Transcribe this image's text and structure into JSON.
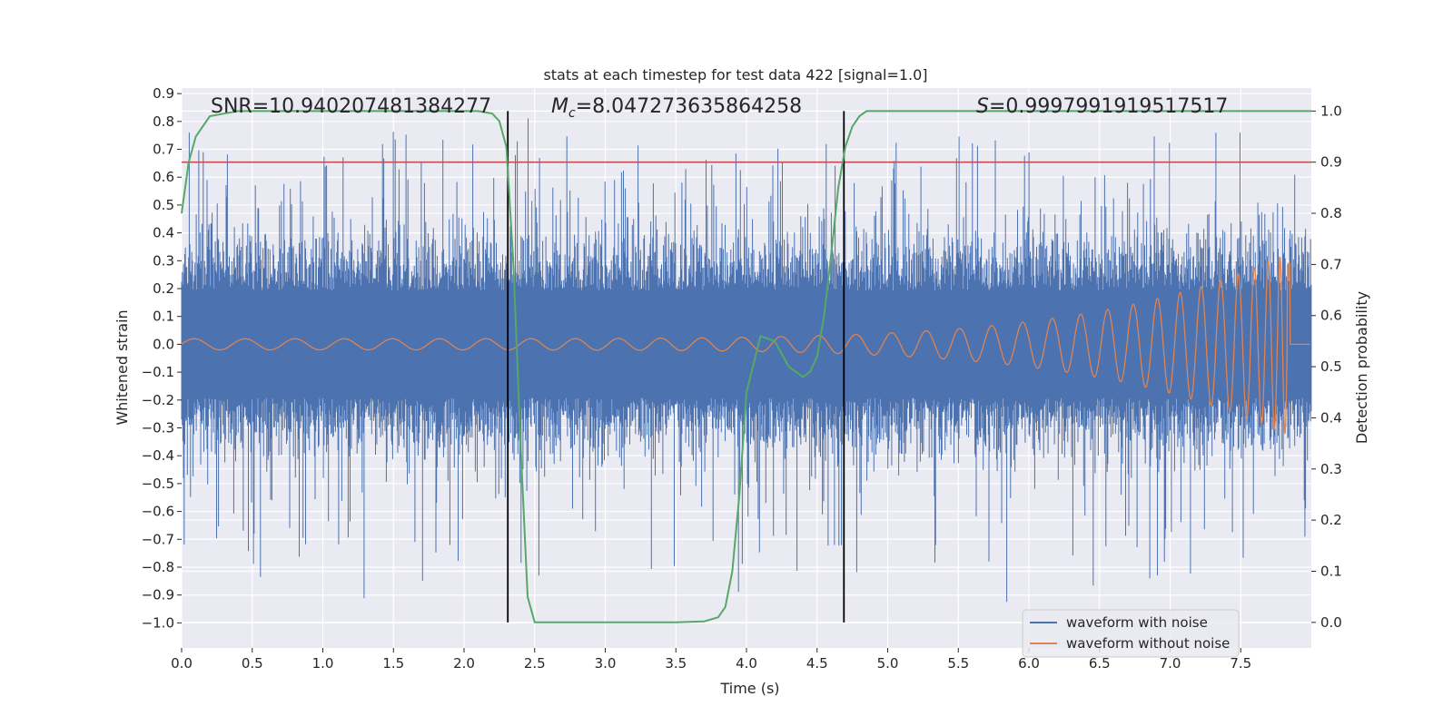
{
  "chart_data": {
    "type": "line",
    "title": "stats at each timestep for test data 422 [signal=1.0]",
    "xlabel": "Time (s)",
    "ylabel_left": "Whitened strain",
    "ylabel_right": "Detection probability",
    "xlim": [
      0.0,
      8.0
    ],
    "ylim_left": [
      -1.09,
      0.92
    ],
    "ylim_right": [
      -0.05,
      1.045
    ],
    "x_ticks": [
      "0.0",
      "0.5",
      "1.0",
      "1.5",
      "2.0",
      "2.5",
      "3.0",
      "3.5",
      "4.0",
      "4.5",
      "5.0",
      "5.5",
      "6.0",
      "6.5",
      "7.0",
      "7.5"
    ],
    "x_tick_values": [
      0,
      0.5,
      1,
      1.5,
      2,
      2.5,
      3,
      3.5,
      4,
      4.5,
      5,
      5.5,
      6,
      6.5,
      7,
      7.5
    ],
    "y_left_ticks": [
      "0.9",
      "0.8",
      "0.7",
      "0.6",
      "0.5",
      "0.4",
      "0.3",
      "0.2",
      "0.1",
      "0.0",
      "−0.1",
      "−0.2",
      "−0.3",
      "−0.4",
      "−0.5",
      "−0.6",
      "−0.7",
      "−0.8",
      "−0.9",
      "−1.0"
    ],
    "y_left_tick_values": [
      0.9,
      0.8,
      0.7,
      0.6,
      0.5,
      0.4,
      0.3,
      0.2,
      0.1,
      0.0,
      -0.1,
      -0.2,
      -0.3,
      -0.4,
      -0.5,
      -0.6,
      -0.7,
      -0.8,
      -0.9,
      -1.0
    ],
    "y_right_ticks": [
      "1.0",
      "0.9",
      "0.8",
      "0.7",
      "0.6",
      "0.5",
      "0.4",
      "0.3",
      "0.2",
      "0.1",
      "0.0"
    ],
    "y_right_tick_values": [
      1.0,
      0.9,
      0.8,
      0.7,
      0.6,
      0.5,
      0.4,
      0.3,
      0.2,
      0.1,
      0.0
    ],
    "annotations": {
      "snr": "SNR=10.940207481384277",
      "mc_symbol": "M",
      "mc_subscript": "c",
      "mc_value": "=8.047273635864258",
      "s_symbol": "S",
      "s_value": "=0.9997991919517517"
    },
    "threshold": 0.9,
    "vertical_markers_x": [
      2.31,
      4.69
    ],
    "noisy_envelope": {
      "typical_amplitude": 0.35,
      "max_peak": 0.83,
      "min_trough": -1.0
    },
    "chirp": {
      "start_amplitude": 0.02,
      "merger_time": 7.85,
      "merger_peak": 0.29,
      "merger_trough": -0.44
    },
    "detection_probability": {
      "x": [
        0.0,
        0.05,
        0.1,
        0.15,
        0.2,
        0.3,
        0.4,
        0.6,
        0.8,
        1.0,
        1.5,
        2.0,
        2.1,
        2.2,
        2.25,
        2.3,
        2.35,
        2.4,
        2.45,
        2.5,
        2.6,
        3.0,
        3.5,
        3.7,
        3.8,
        3.85,
        3.9,
        3.95,
        4.0,
        4.1,
        4.2,
        4.3,
        4.4,
        4.45,
        4.5,
        4.55,
        4.6,
        4.65,
        4.7,
        4.75,
        4.8,
        4.85,
        4.9,
        5.0,
        6.0,
        7.0,
        8.0
      ],
      "values": [
        0.8,
        0.9,
        0.95,
        0.97,
        0.99,
        0.995,
        1.0,
        1.0,
        1.0,
        1.0,
        1.0,
        1.0,
        1.0,
        0.995,
        0.98,
        0.93,
        0.7,
        0.35,
        0.05,
        0.0,
        0.0,
        0.0,
        0.0,
        0.002,
        0.01,
        0.03,
        0.1,
        0.25,
        0.45,
        0.56,
        0.55,
        0.5,
        0.48,
        0.49,
        0.52,
        0.6,
        0.72,
        0.85,
        0.93,
        0.97,
        0.99,
        1.0,
        1.0,
        1.0,
        1.0,
        1.0,
        1.0
      ]
    },
    "legend": {
      "position": "bottom-right",
      "items": [
        {
          "label": "waveform with noise",
          "color": "#4c72b0"
        },
        {
          "label": "waveform without noise",
          "color": "#dd8452"
        }
      ]
    },
    "colors": {
      "noisy": "#4c72b0",
      "clean": "#dd8452",
      "probability": "#55a868",
      "threshold": "#c44e52",
      "markers": "#000000",
      "background": "#eaeaf2",
      "grid": "#ffffff"
    }
  }
}
